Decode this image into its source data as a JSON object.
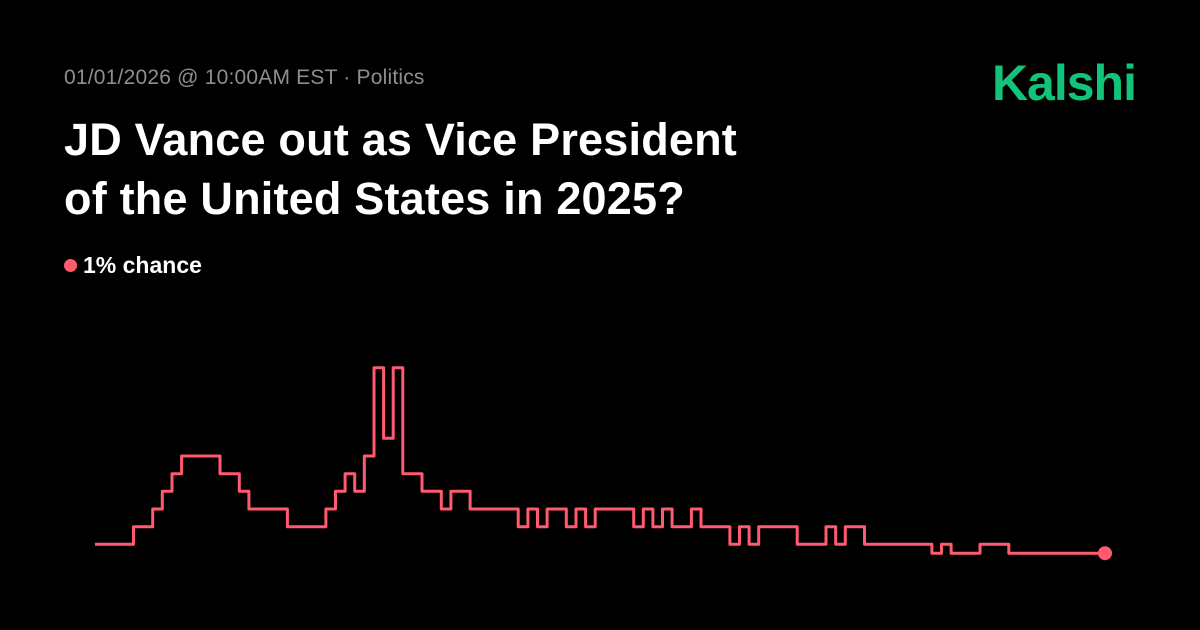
{
  "header": {
    "timestamp": "01/01/2026 @ 10:00AM EST",
    "separator": " · ",
    "category": "Politics",
    "brand": "Kalshi"
  },
  "title": {
    "line1": "JD Vance out as Vice President",
    "line2": "of the United States in 2025?"
  },
  "chance": {
    "label": "1% chance"
  },
  "colors": {
    "background": "#000000",
    "brand": "#12c37a",
    "line": "#ff5a6e",
    "meta_text": "#8e8e8e",
    "title_text": "#ffffff"
  },
  "chart_data": {
    "type": "line",
    "title": "",
    "xlabel": "",
    "ylabel": "",
    "grid": false,
    "legend": "none",
    "axes_visible": false,
    "ylim": [
      0,
      12
    ],
    "series": [
      {
        "color": "#ff5a6e",
        "step": true,
        "values": [
          1,
          1,
          1,
          1,
          2,
          2,
          3,
          4,
          5,
          6,
          6,
          6,
          6,
          5,
          5,
          4,
          3,
          3,
          3,
          3,
          2,
          2,
          2,
          2,
          3,
          4,
          5,
          4,
          6,
          11,
          7,
          11,
          5,
          5,
          4,
          4,
          3,
          4,
          4,
          3,
          3,
          3,
          3,
          3,
          2,
          3,
          2,
          3,
          3,
          2,
          3,
          2,
          3,
          3,
          3,
          3,
          2,
          3,
          2,
          3,
          2,
          2,
          3,
          2,
          2,
          2,
          1,
          2,
          1,
          2,
          2,
          2,
          2,
          1,
          1,
          1,
          2,
          1,
          2,
          2,
          1,
          1,
          1,
          1,
          1,
          1,
          1,
          0.5,
          1,
          0.5,
          0.5,
          0.5,
          1,
          1,
          1,
          0.5,
          0.5,
          0.5,
          0.5,
          0.5,
          0.5,
          0.5,
          0.5,
          0.5,
          0.5,
          0.5
        ]
      }
    ]
  }
}
